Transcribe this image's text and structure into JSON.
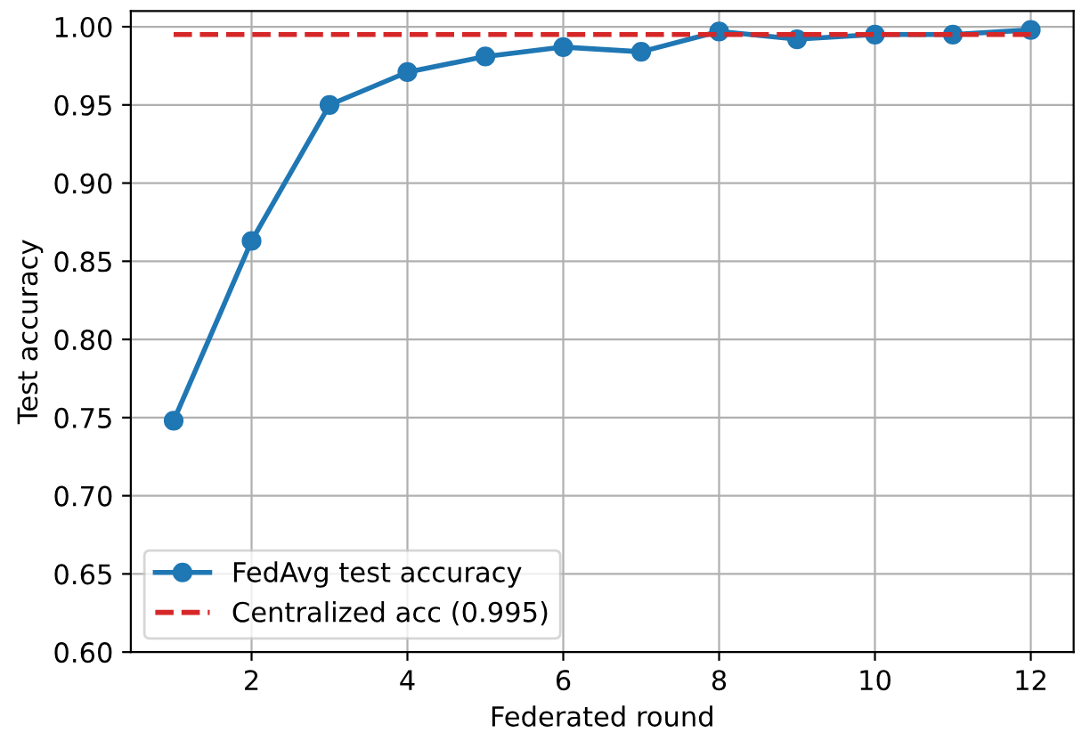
{
  "chart_data": {
    "type": "line",
    "xlabel": "Federated round",
    "ylabel": "Test accuracy",
    "x": [
      1,
      2,
      3,
      4,
      5,
      6,
      7,
      8,
      9,
      10,
      11,
      12
    ],
    "series": [
      {
        "name": "FedAvg test accuracy",
        "color": "#1f77b4",
        "values": [
          0.748,
          0.863,
          0.95,
          0.971,
          0.981,
          0.987,
          0.984,
          0.997,
          0.992,
          0.995,
          0.995,
          0.998
        ]
      },
      {
        "name": "Centralized acc (0.995)",
        "color": "#d62728",
        "type": "line",
        "line_style": "dashed",
        "marker": "none",
        "values": [
          0.995,
          null,
          null,
          null,
          null,
          null,
          null,
          null,
          null,
          null,
          null,
          0.995
        ]
      }
    ],
    "marker": "circle",
    "line_style": "solid",
    "xlim": [
      0.45,
      12.55
    ],
    "ylim": [
      0.6,
      1.01
    ],
    "xticks": [
      2,
      4,
      6,
      8,
      10,
      12
    ],
    "yticks": [
      {
        "value": 0.6,
        "label": "0.60"
      },
      {
        "value": 0.65,
        "label": "0.65"
      },
      {
        "value": 0.7,
        "label": "0.70"
      },
      {
        "value": 0.75,
        "label": "0.75"
      },
      {
        "value": 0.8,
        "label": "0.80"
      },
      {
        "value": 0.85,
        "label": "0.85"
      },
      {
        "value": 0.9,
        "label": "0.90"
      },
      {
        "value": 0.95,
        "label": "0.95"
      },
      {
        "value": 1.0,
        "label": "1.00"
      }
    ],
    "grid": true,
    "legend": "bottom left"
  }
}
